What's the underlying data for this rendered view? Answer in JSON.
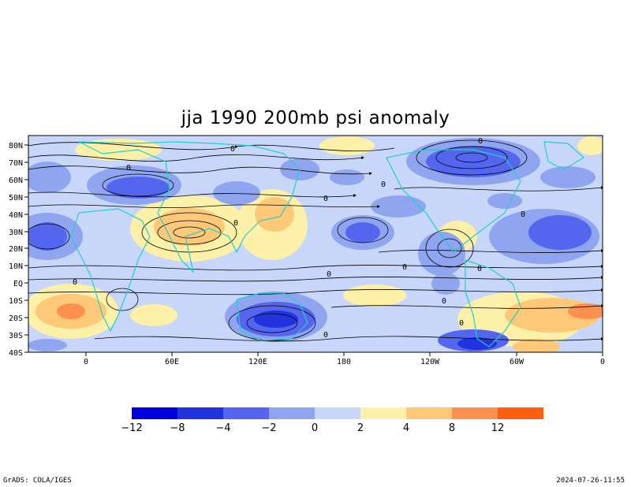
{
  "title": "jja 1990 200mb psi anomaly",
  "footer_left": "GrADS: COLA/IGES",
  "footer_right": "2024-07-26-11:55",
  "map": {
    "lat_labels": [
      "80N",
      "70N",
      "60N",
      "50N",
      "40N",
      "30N",
      "20N",
      "10N",
      "EQ",
      "10S",
      "20S",
      "30S",
      "40S"
    ],
    "lon_labels": [
      "0",
      "60E",
      "120E",
      "180",
      "120W",
      "60W",
      "0"
    ],
    "contour_zero_label": "0"
  },
  "colorbar": {
    "labels": [
      "−12",
      "−8",
      "−4",
      "−2",
      "0",
      "2",
      "4",
      "8",
      "12"
    ],
    "colors": [
      "#0000dd",
      "#2233dd",
      "#5566ee",
      "#8fa5f0",
      "#c8d6fa",
      "#fdf0a8",
      "#fdc878",
      "#fc9050",
      "#ff5e10"
    ]
  },
  "colors": {
    "coast": "#20d0c8",
    "streamline": "#000000"
  }
}
